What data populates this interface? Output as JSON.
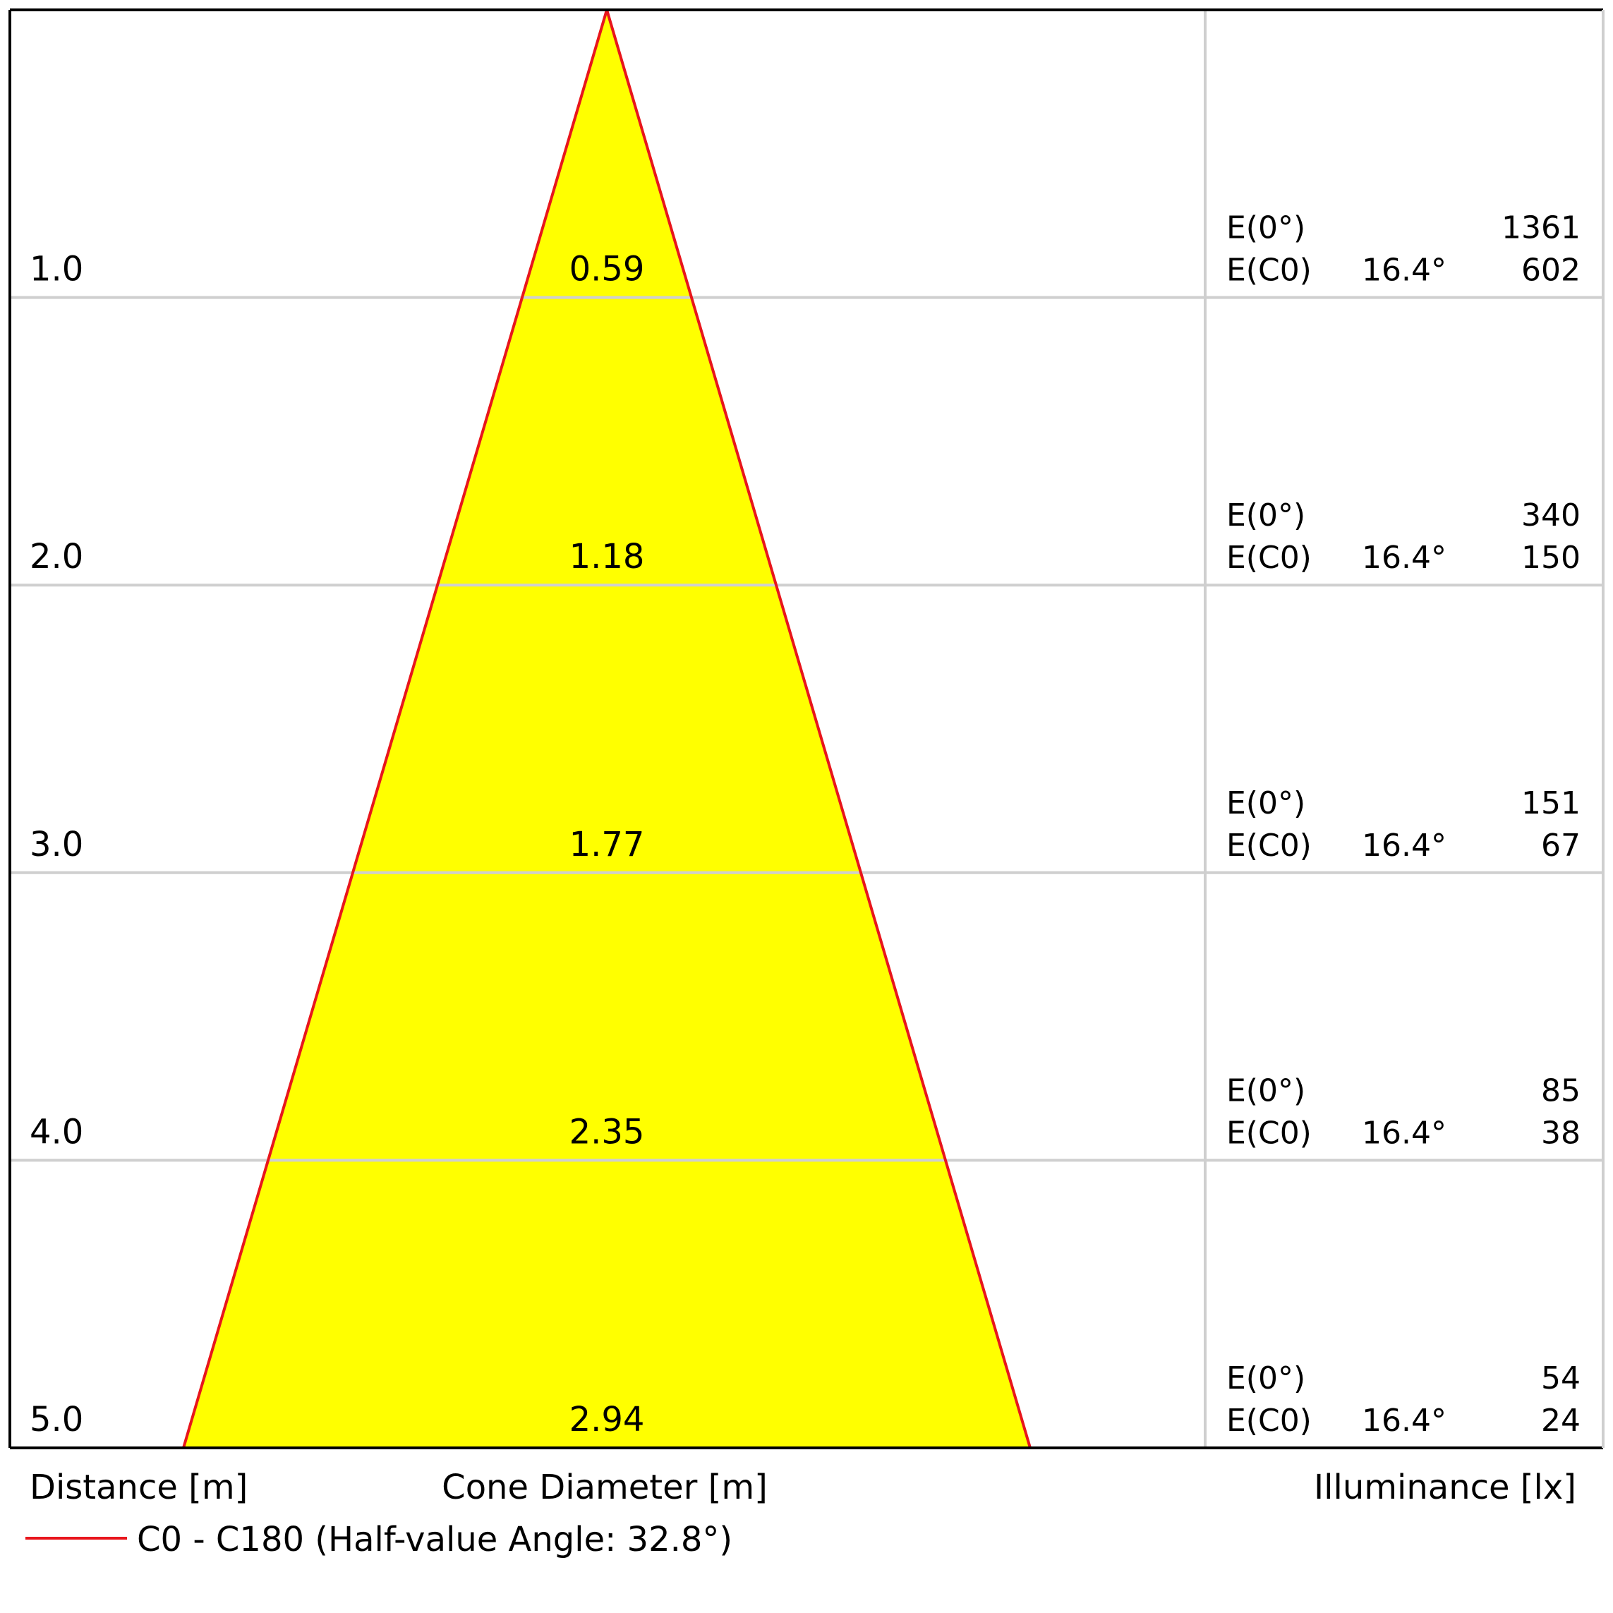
{
  "chart_data": {
    "type": "beam-cone",
    "x_axis_label": "Distance [m]",
    "center_axis_label": "Cone Diameter [m]",
    "right_axis_label": "Illuminance [lx]",
    "legend": [
      {
        "label": "C0 - C180 (Half-value Angle: 32.8°)",
        "color": "#e8161c"
      }
    ],
    "half_value_angle_deg": 32.8,
    "max_distance": 5.0,
    "fill_color": "#ffff00",
    "line_color": "#e8161c",
    "rows": [
      {
        "distance": "1.0",
        "diameter": "0.59",
        "e0_label": "E(0°)",
        "e0_value": "1361",
        "ec_label": "E(C0)",
        "ec_angle": "16.4°",
        "ec_value": "602"
      },
      {
        "distance": "2.0",
        "diameter": "1.18",
        "e0_label": "E(0°)",
        "e0_value": "340",
        "ec_label": "E(C0)",
        "ec_angle": "16.4°",
        "ec_value": "150"
      },
      {
        "distance": "3.0",
        "diameter": "1.77",
        "e0_label": "E(0°)",
        "e0_value": "151",
        "ec_label": "E(C0)",
        "ec_angle": "16.4°",
        "ec_value": "67"
      },
      {
        "distance": "4.0",
        "diameter": "2.35",
        "e0_label": "E(0°)",
        "e0_value": "85",
        "ec_label": "E(C0)",
        "ec_angle": "16.4°",
        "ec_value": "38"
      },
      {
        "distance": "5.0",
        "diameter": "2.94",
        "e0_label": "E(0°)",
        "e0_value": "54",
        "ec_label": "E(C0)",
        "ec_angle": "16.4°",
        "ec_value": "24"
      }
    ]
  }
}
